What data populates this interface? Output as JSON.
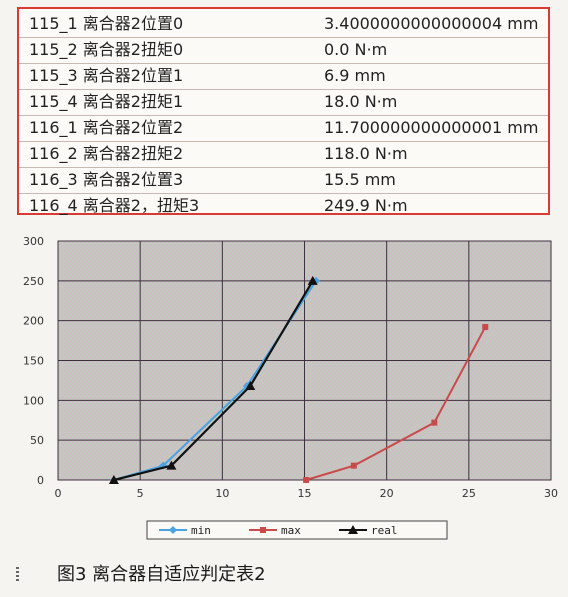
{
  "table": {
    "rows": [
      {
        "name": "115_1 离合器2位置0",
        "value": "3.4000000000000004 mm"
      },
      {
        "name": "115_2 离合器2扭矩0",
        "value": "0.0 N·m"
      },
      {
        "name": "115_3 离合器2位置1",
        "value": "6.9 mm"
      },
      {
        "name": "115_4 离合器2扭矩1",
        "value": "18.0 N·m"
      },
      {
        "name": "116_1 离合器2位置2",
        "value": "11.700000000000001 mm"
      },
      {
        "name": "116_2 离合器2扭矩2",
        "value": "118.0 N·m"
      },
      {
        "name": "116_3 离合器2位置3",
        "value": "15.5 mm"
      },
      {
        "name": "116_4 离合器2，扭矩3",
        "value": "249.9 N·m"
      }
    ],
    "border_color": "#d93a32"
  },
  "chart_data": {
    "type": "line",
    "xlim": [
      0,
      30
    ],
    "ylim": [
      0,
      300
    ],
    "xticks": [
      "0",
      "5",
      "10",
      "15",
      "20",
      "25",
      "30"
    ],
    "yticks": [
      "0",
      "50",
      "100",
      "150",
      "200",
      "250",
      "300"
    ],
    "grid": true,
    "legend_position": "bottom",
    "series": [
      {
        "name": "min",
        "color": "#4aa3df",
        "marker": "diamond",
        "points": [
          [
            3.4,
            0
          ],
          [
            6.4,
            18
          ],
          [
            11.5,
            118
          ],
          [
            15.7,
            250
          ]
        ]
      },
      {
        "name": "max",
        "color": "#c94a4a",
        "marker": "square",
        "points": [
          [
            15.1,
            0
          ],
          [
            18.0,
            18
          ],
          [
            22.9,
            72
          ],
          [
            26.0,
            192
          ]
        ]
      },
      {
        "name": "real",
        "color": "#111111",
        "marker": "triangle",
        "points": [
          [
            3.4,
            0
          ],
          [
            6.9,
            18
          ],
          [
            11.7,
            118
          ],
          [
            15.5,
            249.9
          ]
        ]
      }
    ]
  },
  "caption": "图3   离合器自适应判定表2"
}
